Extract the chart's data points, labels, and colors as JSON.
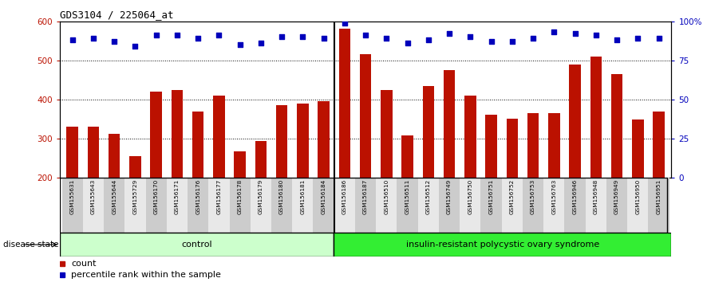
{
  "title": "GDS3104 / 225064_at",
  "samples": [
    "GSM155631",
    "GSM155643",
    "GSM155644",
    "GSM155729",
    "GSM156170",
    "GSM156171",
    "GSM156176",
    "GSM156177",
    "GSM156178",
    "GSM156179",
    "GSM156180",
    "GSM156181",
    "GSM156184",
    "GSM156186",
    "GSM156187",
    "GSM156510",
    "GSM156511",
    "GSM156512",
    "GSM156749",
    "GSM156750",
    "GSM156751",
    "GSM156752",
    "GSM156753",
    "GSM156763",
    "GSM156946",
    "GSM156948",
    "GSM156949",
    "GSM156950",
    "GSM156951"
  ],
  "bar_values": [
    330,
    330,
    312,
    256,
    420,
    424,
    370,
    410,
    268,
    294,
    385,
    390,
    396,
    580,
    515,
    425,
    307,
    435,
    475,
    410,
    360,
    350,
    365,
    365,
    490,
    510,
    465,
    348,
    370
  ],
  "blue_pct": [
    88,
    89,
    87,
    84,
    91,
    91,
    89,
    91,
    85,
    86,
    90,
    90,
    89,
    99,
    91,
    89,
    86,
    88,
    92,
    90,
    87,
    87,
    89,
    93,
    92,
    91,
    88,
    89,
    89
  ],
  "group_labels": [
    "control",
    "insulin-resistant polycystic ovary syndrome"
  ],
  "group_counts": [
    13,
    16
  ],
  "bar_color": "#bb1100",
  "blue_color": "#0000bb",
  "ylim_left": [
    200,
    600
  ],
  "ylim_right": [
    0,
    100
  ],
  "yticks_left": [
    200,
    300,
    400,
    500,
    600
  ],
  "yticks_right": [
    0,
    25,
    50,
    75,
    100
  ],
  "ytick_labels_right": [
    "0",
    "25",
    "50",
    "75",
    "100%"
  ],
  "bg_color": "#ffffff",
  "disease_state_label": "disease state",
  "legend_count_label": "count",
  "legend_pct_label": "percentile rank within the sample",
  "ctrl_color": "#ccffcc",
  "disease_color": "#33ee33",
  "label_bg_color": "#dddddd"
}
